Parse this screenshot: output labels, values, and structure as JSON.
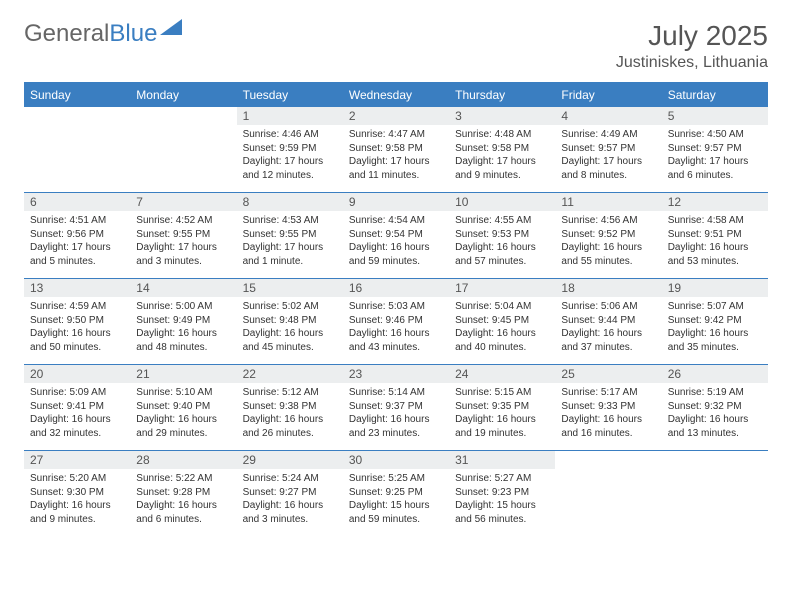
{
  "brand": {
    "part1": "General",
    "part2": "Blue"
  },
  "title": "July 2025",
  "location": "Justiniskes, Lithuania",
  "colors": {
    "header_bg": "#3a7ec1",
    "header_text": "#ffffff",
    "daynum_bg": "#eceeef",
    "text": "#333333",
    "title": "#555555",
    "border": "#3a7ec1"
  },
  "fonts": {
    "title_size": 28,
    "location_size": 16,
    "header_size": 12,
    "cell_size": 10
  },
  "weekdays": [
    "Sunday",
    "Monday",
    "Tuesday",
    "Wednesday",
    "Thursday",
    "Friday",
    "Saturday"
  ],
  "weeks": [
    [
      null,
      null,
      {
        "d": "1",
        "sr": "4:46 AM",
        "ss": "9:59 PM",
        "dl": "17 hours and 12 minutes."
      },
      {
        "d": "2",
        "sr": "4:47 AM",
        "ss": "9:58 PM",
        "dl": "17 hours and 11 minutes."
      },
      {
        "d": "3",
        "sr": "4:48 AM",
        "ss": "9:58 PM",
        "dl": "17 hours and 9 minutes."
      },
      {
        "d": "4",
        "sr": "4:49 AM",
        "ss": "9:57 PM",
        "dl": "17 hours and 8 minutes."
      },
      {
        "d": "5",
        "sr": "4:50 AM",
        "ss": "9:57 PM",
        "dl": "17 hours and 6 minutes."
      }
    ],
    [
      {
        "d": "6",
        "sr": "4:51 AM",
        "ss": "9:56 PM",
        "dl": "17 hours and 5 minutes."
      },
      {
        "d": "7",
        "sr": "4:52 AM",
        "ss": "9:55 PM",
        "dl": "17 hours and 3 minutes."
      },
      {
        "d": "8",
        "sr": "4:53 AM",
        "ss": "9:55 PM",
        "dl": "17 hours and 1 minute."
      },
      {
        "d": "9",
        "sr": "4:54 AM",
        "ss": "9:54 PM",
        "dl": "16 hours and 59 minutes."
      },
      {
        "d": "10",
        "sr": "4:55 AM",
        "ss": "9:53 PM",
        "dl": "16 hours and 57 minutes."
      },
      {
        "d": "11",
        "sr": "4:56 AM",
        "ss": "9:52 PM",
        "dl": "16 hours and 55 minutes."
      },
      {
        "d": "12",
        "sr": "4:58 AM",
        "ss": "9:51 PM",
        "dl": "16 hours and 53 minutes."
      }
    ],
    [
      {
        "d": "13",
        "sr": "4:59 AM",
        "ss": "9:50 PM",
        "dl": "16 hours and 50 minutes."
      },
      {
        "d": "14",
        "sr": "5:00 AM",
        "ss": "9:49 PM",
        "dl": "16 hours and 48 minutes."
      },
      {
        "d": "15",
        "sr": "5:02 AM",
        "ss": "9:48 PM",
        "dl": "16 hours and 45 minutes."
      },
      {
        "d": "16",
        "sr": "5:03 AM",
        "ss": "9:46 PM",
        "dl": "16 hours and 43 minutes."
      },
      {
        "d": "17",
        "sr": "5:04 AM",
        "ss": "9:45 PM",
        "dl": "16 hours and 40 minutes."
      },
      {
        "d": "18",
        "sr": "5:06 AM",
        "ss": "9:44 PM",
        "dl": "16 hours and 37 minutes."
      },
      {
        "d": "19",
        "sr": "5:07 AM",
        "ss": "9:42 PM",
        "dl": "16 hours and 35 minutes."
      }
    ],
    [
      {
        "d": "20",
        "sr": "5:09 AM",
        "ss": "9:41 PM",
        "dl": "16 hours and 32 minutes."
      },
      {
        "d": "21",
        "sr": "5:10 AM",
        "ss": "9:40 PM",
        "dl": "16 hours and 29 minutes."
      },
      {
        "d": "22",
        "sr": "5:12 AM",
        "ss": "9:38 PM",
        "dl": "16 hours and 26 minutes."
      },
      {
        "d": "23",
        "sr": "5:14 AM",
        "ss": "9:37 PM",
        "dl": "16 hours and 23 minutes."
      },
      {
        "d": "24",
        "sr": "5:15 AM",
        "ss": "9:35 PM",
        "dl": "16 hours and 19 minutes."
      },
      {
        "d": "25",
        "sr": "5:17 AM",
        "ss": "9:33 PM",
        "dl": "16 hours and 16 minutes."
      },
      {
        "d": "26",
        "sr": "5:19 AM",
        "ss": "9:32 PM",
        "dl": "16 hours and 13 minutes."
      }
    ],
    [
      {
        "d": "27",
        "sr": "5:20 AM",
        "ss": "9:30 PM",
        "dl": "16 hours and 9 minutes."
      },
      {
        "d": "28",
        "sr": "5:22 AM",
        "ss": "9:28 PM",
        "dl": "16 hours and 6 minutes."
      },
      {
        "d": "29",
        "sr": "5:24 AM",
        "ss": "9:27 PM",
        "dl": "16 hours and 3 minutes."
      },
      {
        "d": "30",
        "sr": "5:25 AM",
        "ss": "9:25 PM",
        "dl": "15 hours and 59 minutes."
      },
      {
        "d": "31",
        "sr": "5:27 AM",
        "ss": "9:23 PM",
        "dl": "15 hours and 56 minutes."
      },
      null,
      null
    ]
  ],
  "labels": {
    "sunrise": "Sunrise:",
    "sunset": "Sunset:",
    "daylight": "Daylight:"
  }
}
